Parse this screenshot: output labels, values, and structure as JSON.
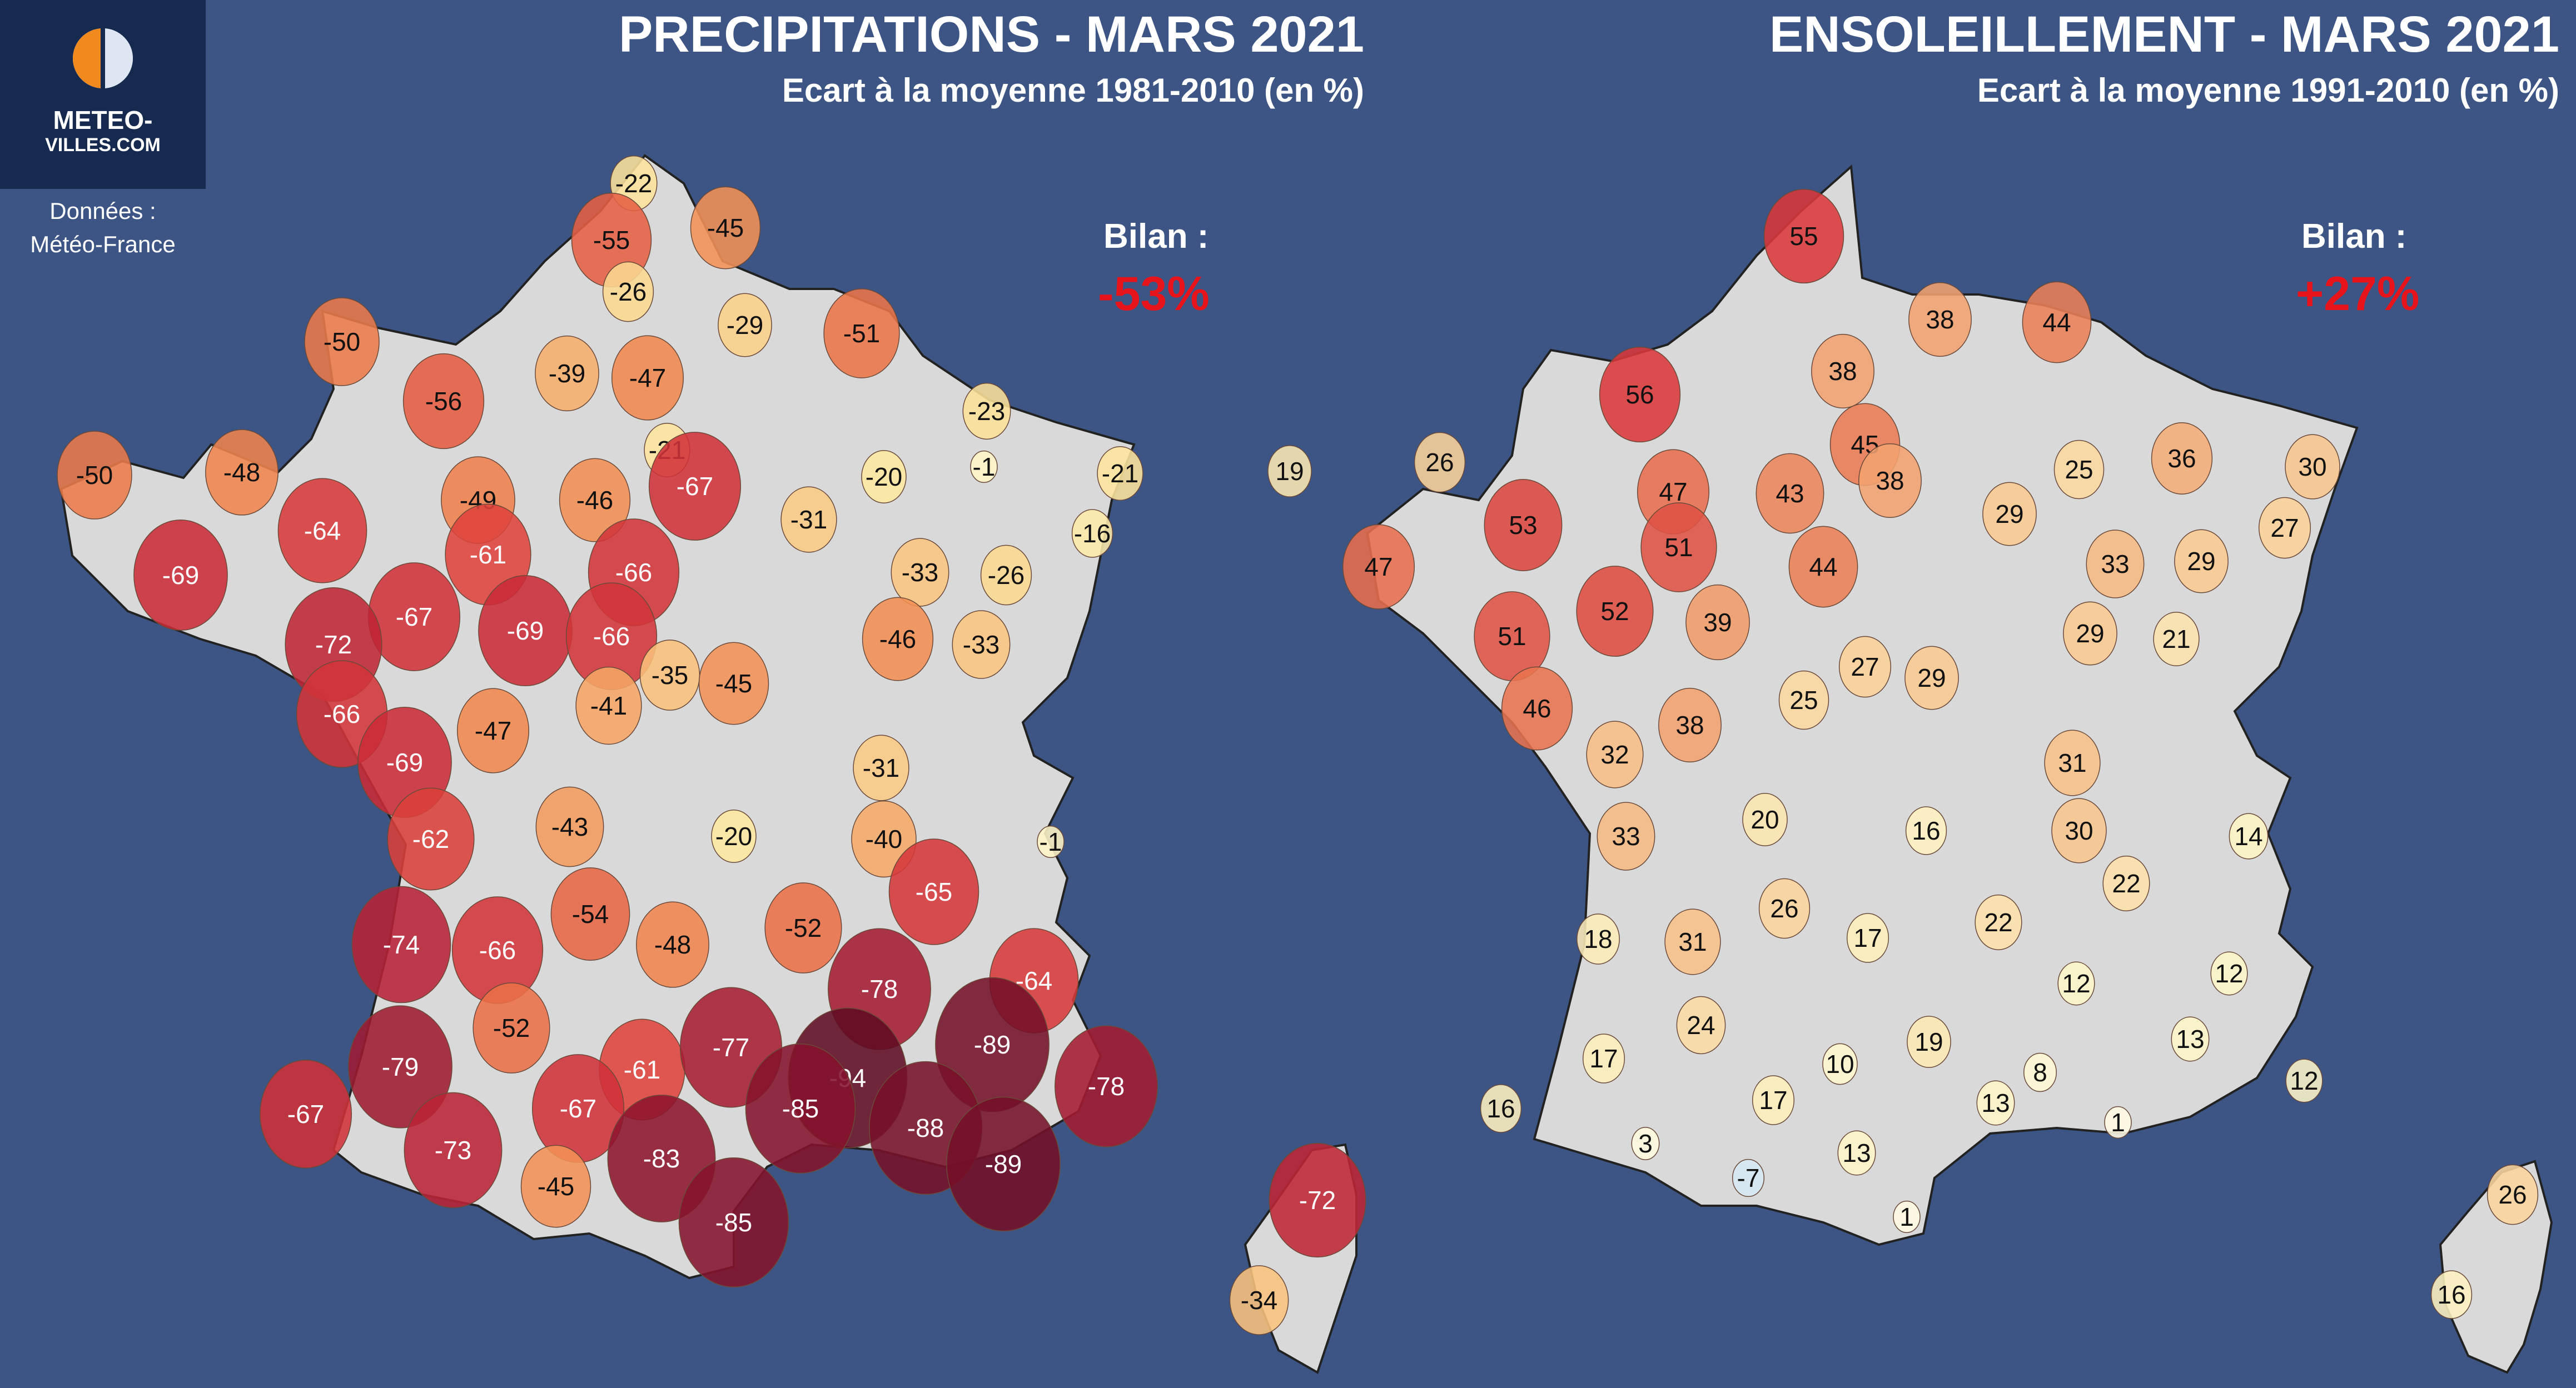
{
  "logo": {
    "line1": "METEO-",
    "line2": "VILLES.COM"
  },
  "credits": {
    "line1": "Données :",
    "line2": "Météo-France"
  },
  "colors": {
    "background": "#3d5585",
    "land": "#d9d9d9",
    "bilan": "#e8141c"
  },
  "left_panel": {
    "title": "PRECIPITATIONS - MARS 2021",
    "subtitle": "Ecart à la moyenne 1981-2010 (en %)",
    "bilan_label": "Bilan :",
    "bilan_value": "-53%",
    "stations": [
      {
        "value": -22
      },
      {
        "value": -55
      },
      {
        "value": -45
      },
      {
        "value": -26
      },
      {
        "value": -29
      },
      {
        "value": -50
      },
      {
        "value": -51
      },
      {
        "value": -56
      },
      {
        "value": -39
      },
      {
        "value": -47
      },
      {
        "value": -23
      },
      {
        "value": -50
      },
      {
        "value": -48
      },
      {
        "value": -21
      },
      {
        "value": -1
      },
      {
        "value": -21
      },
      {
        "value": -20
      },
      {
        "value": -49
      },
      {
        "value": -46
      },
      {
        "value": -67
      },
      {
        "value": -64
      },
      {
        "value": -31
      },
      {
        "value": -16
      },
      {
        "value": -61
      },
      {
        "value": -69
      },
      {
        "value": -66
      },
      {
        "value": -33
      },
      {
        "value": -26
      },
      {
        "value": -67
      },
      {
        "value": -69
      },
      {
        "value": -72
      },
      {
        "value": -66
      },
      {
        "value": -46
      },
      {
        "value": -33
      },
      {
        "value": -35
      },
      {
        "value": -45
      },
      {
        "value": -66
      },
      {
        "value": -41
      },
      {
        "value": -47
      },
      {
        "value": -69
      },
      {
        "value": -31
      },
      {
        "value": -43
      },
      {
        "value": -62
      },
      {
        "value": -20
      },
      {
        "value": -40
      },
      {
        "value": -1
      },
      {
        "value": -65
      },
      {
        "value": -54
      },
      {
        "value": -74
      },
      {
        "value": -66
      },
      {
        "value": -48
      },
      {
        "value": -52
      },
      {
        "value": -64
      },
      {
        "value": -78
      },
      {
        "value": -52
      },
      {
        "value": -89
      },
      {
        "value": -79
      },
      {
        "value": -61
      },
      {
        "value": -77
      },
      {
        "value": -94
      },
      {
        "value": -78
      },
      {
        "value": -67
      },
      {
        "value": -67
      },
      {
        "value": -85
      },
      {
        "value": -88
      },
      {
        "value": -73
      },
      {
        "value": -83
      },
      {
        "value": -89
      },
      {
        "value": -45
      },
      {
        "value": -72
      },
      {
        "value": -85
      },
      {
        "value": -34
      }
    ]
  },
  "right_panel": {
    "title": "ENSOLEILLEMENT - MARS 2021",
    "subtitle": "Ecart à la moyenne 1991-2010 (en %)",
    "bilan_label": "Bilan :",
    "bilan_value": "+27%",
    "stations": [
      {
        "value": 55
      },
      {
        "value": 38
      },
      {
        "value": 44
      },
      {
        "value": 38
      },
      {
        "value": 56
      },
      {
        "value": 45
      },
      {
        "value": 19
      },
      {
        "value": 26
      },
      {
        "value": 25
      },
      {
        "value": 36
      },
      {
        "value": 30
      },
      {
        "value": 38
      },
      {
        "value": 47
      },
      {
        "value": 43
      },
      {
        "value": 53
      },
      {
        "value": 29
      },
      {
        "value": 27
      },
      {
        "value": 47
      },
      {
        "value": 51
      },
      {
        "value": 33
      },
      {
        "value": 29
      },
      {
        "value": 44
      },
      {
        "value": 52
      },
      {
        "value": 21
      },
      {
        "value": 51
      },
      {
        "value": 39
      },
      {
        "value": 29
      },
      {
        "value": 27
      },
      {
        "value": 29
      },
      {
        "value": 46
      },
      {
        "value": 25
      },
      {
        "value": 38
      },
      {
        "value": 32
      },
      {
        "value": 31
      },
      {
        "value": 20
      },
      {
        "value": 16
      },
      {
        "value": 33
      },
      {
        "value": 30
      },
      {
        "value": 14
      },
      {
        "value": 22
      },
      {
        "value": 26
      },
      {
        "value": 18
      },
      {
        "value": 31
      },
      {
        "value": 17
      },
      {
        "value": 22
      },
      {
        "value": 12
      },
      {
        "value": 12
      },
      {
        "value": 24
      },
      {
        "value": 19
      },
      {
        "value": 13
      },
      {
        "value": 17
      },
      {
        "value": 10
      },
      {
        "value": 8
      },
      {
        "value": 12
      },
      {
        "value": 16
      },
      {
        "value": 17
      },
      {
        "value": 13
      },
      {
        "value": 1
      },
      {
        "value": 3
      },
      {
        "value": 13
      },
      {
        "value": -7
      },
      {
        "value": 1
      },
      {
        "value": 26
      },
      {
        "value": 16
      }
    ]
  }
}
